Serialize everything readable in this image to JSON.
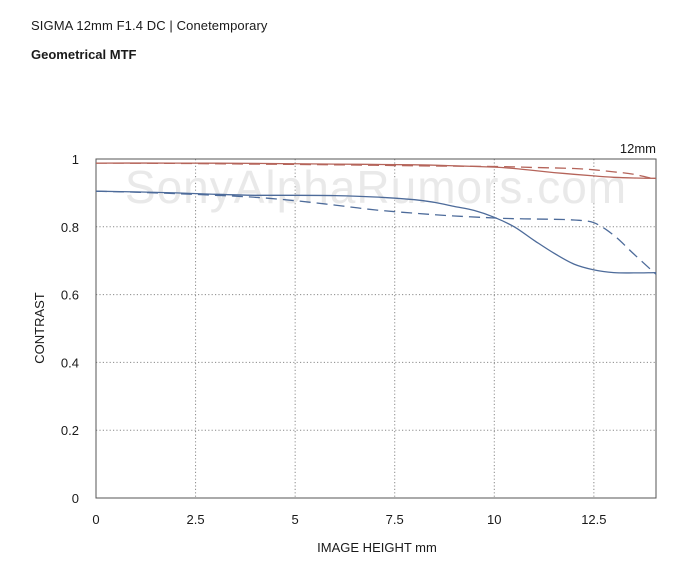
{
  "header": {
    "title": "SIGMA 12mm F1.4 DC | Conetemporary",
    "subtitle": "Geometrical MTF"
  },
  "watermark": "SonyAlphaRumors.com",
  "chart_data": {
    "type": "line",
    "title": "Geometrical MTF",
    "annotation": "12mm",
    "xlabel": "IMAGE HEIGHT  mm",
    "ylabel": "CONTRAST",
    "xlim": [
      0,
      14.06
    ],
    "ylim": [
      0,
      1
    ],
    "x_ticks": [
      0,
      2.5,
      5,
      7.5,
      10,
      12.5
    ],
    "x_tick_labels": [
      "0",
      "2.5",
      "5",
      "7.5",
      "10",
      "12.5"
    ],
    "y_ticks": [
      0,
      0.2,
      0.4,
      0.6,
      0.8,
      1
    ],
    "y_tick_labels": [
      "0",
      "0.2",
      "0.4",
      "0.6",
      "0.8",
      "1"
    ],
    "grid": true,
    "series": [
      {
        "color": "#b5645a",
        "style": "solid",
        "x": [
          0,
          2,
          4,
          6,
          8,
          9,
          10,
          10.5,
          11,
          11.5,
          12,
          12.5,
          13,
          13.5,
          14.06
        ],
        "y": [
          0.988,
          0.988,
          0.987,
          0.985,
          0.983,
          0.98,
          0.976,
          0.972,
          0.966,
          0.96,
          0.955,
          0.95,
          0.946,
          0.944,
          0.943
        ]
      },
      {
        "color": "#b5645a",
        "style": "dashed",
        "x": [
          0,
          2,
          4,
          6,
          8,
          10,
          11,
          12,
          12.5,
          13,
          13.5,
          14.06
        ],
        "y": [
          0.988,
          0.987,
          0.985,
          0.983,
          0.98,
          0.978,
          0.975,
          0.972,
          0.968,
          0.962,
          0.955,
          0.94
        ]
      },
      {
        "color": "#4d6b9a",
        "style": "solid",
        "x": [
          0,
          1,
          2,
          3,
          4,
          5,
          6,
          7,
          8,
          8.5,
          9,
          9.5,
          10,
          10.5,
          11,
          11.5,
          12,
          12.5,
          13,
          13.5,
          14.06
        ],
        "y": [
          0.905,
          0.903,
          0.9,
          0.896,
          0.893,
          0.893,
          0.892,
          0.888,
          0.88,
          0.872,
          0.86,
          0.848,
          0.828,
          0.8,
          0.76,
          0.722,
          0.69,
          0.673,
          0.665,
          0.664,
          0.665
        ]
      },
      {
        "color": "#4d6b9a",
        "style": "dashed",
        "x": [
          0,
          1,
          2,
          3,
          4,
          5,
          6,
          7,
          8,
          9,
          10,
          10.5,
          11,
          11.5,
          12,
          12.5,
          13,
          13.5,
          14.06
        ],
        "y": [
          0.905,
          0.902,
          0.898,
          0.893,
          0.887,
          0.877,
          0.864,
          0.85,
          0.84,
          0.832,
          0.826,
          0.824,
          0.823,
          0.822,
          0.82,
          0.812,
          0.775,
          0.72,
          0.66
        ]
      }
    ]
  }
}
